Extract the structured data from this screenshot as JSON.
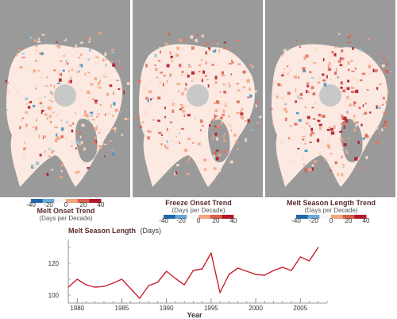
{
  "colors": {
    "land": "#9a9a9a",
    "ocean_panel": "#ececec",
    "pole_hole": "#c8c8c8",
    "line": "#c8202e",
    "scale": [
      "#2166ac",
      "#6aa8d8",
      "#f7f7f7",
      "#f4a582",
      "#d6604d",
      "#b2182b"
    ]
  },
  "maps": [
    {
      "title": "Melt Onset Trend",
      "subtitle": "(Days per Decade)",
      "ticks": [
        "-40",
        "-20",
        "0",
        "20",
        "40"
      ],
      "intensity": 0.45
    },
    {
      "title": "Freeze Onset Trend",
      "subtitle": "(Days per Decade)",
      "ticks": [
        "-40",
        "-20",
        "0",
        "20",
        "40"
      ],
      "intensity": 0.7
    },
    {
      "title": "Melt Season Length Trend",
      "subtitle": "(Days per Decade)",
      "ticks": [
        "-40",
        "-20",
        "0",
        "20",
        "40"
      ],
      "intensity": 0.95
    }
  ],
  "chart_data": {
    "type": "line",
    "title": "Melt Season Length",
    "title_unit": "(Days)",
    "xlabel": "Year",
    "ylabel": "",
    "xlim": [
      1979,
      2008
    ],
    "ylim": [
      95,
      135
    ],
    "x_ticks": [
      1980,
      1985,
      1990,
      1995,
      2000,
      2005
    ],
    "y_ticks": [
      100,
      120
    ],
    "x": [
      1979,
      1980,
      1981,
      1982,
      1983,
      1984,
      1985,
      1986,
      1987,
      1988,
      1989,
      1990,
      1991,
      1992,
      1993,
      1994,
      1995,
      1996,
      1997,
      1998,
      1999,
      2000,
      2001,
      2002,
      2003,
      2004,
      2005,
      2006,
      2007
    ],
    "series": [
      {
        "values": [
          105,
          110,
          106.5,
          105,
          105.5,
          107.5,
          110,
          104,
          98,
          106,
          108,
          115,
          110.5,
          106.5,
          115.5,
          116.5,
          126.5,
          101.5,
          113,
          117,
          115,
          113,
          112.5,
          115.5,
          117.5,
          115.5,
          124,
          121.5,
          130
        ]
      }
    ],
    "grid": false
  }
}
